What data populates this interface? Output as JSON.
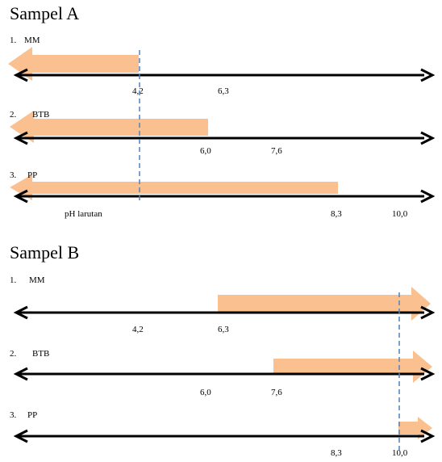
{
  "colors": {
    "arrow_fill": "#FAC090",
    "axis": "#000000",
    "dashed": "#4F81BD"
  },
  "sections": [
    {
      "title": "Sampel A",
      "dashed_at": "4,2",
      "rows": [
        {
          "num": "1.",
          "name": "MM",
          "ticks": [
            "4,2",
            "6,3"
          ],
          "arrow_dir": "left",
          "arrow_end": "4,2"
        },
        {
          "num": "2.",
          "name": "BTB",
          "ticks": [
            "6,0",
            "7,6"
          ],
          "arrow_dir": "left",
          "arrow_end": "6,0"
        },
        {
          "num": "3.",
          "name": "PP",
          "ticks": [
            "8,3",
            "10,0"
          ],
          "arrow_dir": "left",
          "arrow_end": "8,3",
          "note": "pH larutan"
        }
      ]
    },
    {
      "title": "Sampel B",
      "dashed_at": "10,0",
      "rows": [
        {
          "num": "1.",
          "name": "MM",
          "ticks": [
            "4,2",
            "6,3"
          ],
          "arrow_dir": "right",
          "arrow_start": "6,3"
        },
        {
          "num": "2.",
          "name": "BTB",
          "ticks": [
            "6,0",
            "7,6"
          ],
          "arrow_dir": "right",
          "arrow_start": "7,6"
        },
        {
          "num": "3.",
          "name": "PP",
          "ticks": [
            "8,3",
            "10,0"
          ],
          "arrow_dir": "right",
          "arrow_start": "10,0"
        }
      ]
    }
  ]
}
